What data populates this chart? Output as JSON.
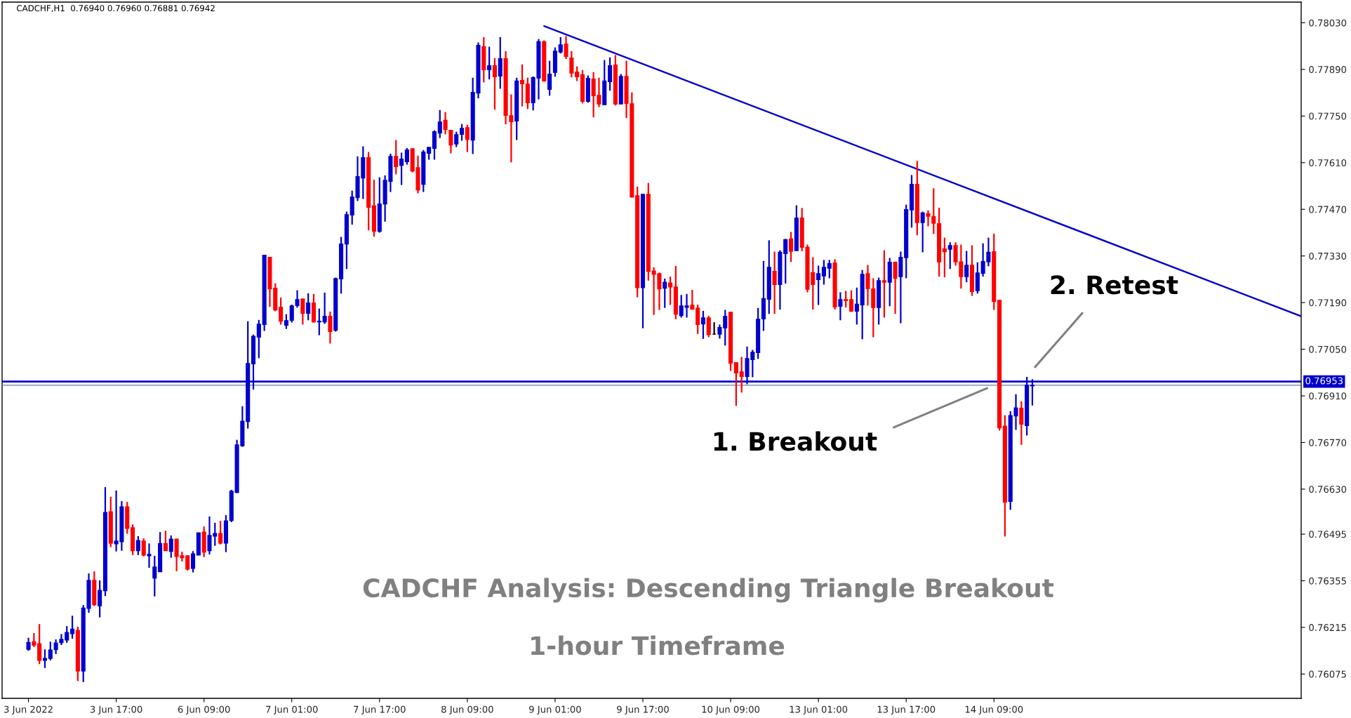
{
  "chart_data": {
    "type": "candlestick",
    "title": "CADCHF,H1  0.76940 0.76960 0.76881 0.76942",
    "categories": [
      "3 Jun 2022",
      null,
      null,
      null,
      null,
      null,
      null,
      null,
      null,
      null,
      null,
      null,
      null,
      null,
      null,
      null,
      "3 Jun 17:00",
      null,
      null,
      null,
      null,
      null,
      null,
      null,
      null,
      null,
      null,
      null,
      null,
      null,
      null,
      null,
      "6 Jun 09:00",
      null,
      null,
      null,
      null,
      null,
      null,
      null,
      null,
      null,
      null,
      null,
      null,
      null,
      null,
      null,
      "7 Jun 01:00",
      null,
      null,
      null,
      null,
      null,
      null,
      null,
      null,
      null,
      null,
      null,
      null,
      null,
      null,
      null,
      "7 Jun 17:00",
      null,
      null,
      null,
      null,
      null,
      null,
      null,
      null,
      null,
      null,
      null,
      null,
      null,
      null,
      null,
      "8 Jun 09:00",
      null,
      null,
      null,
      null,
      null,
      null,
      null,
      null,
      null,
      null,
      null,
      null,
      null,
      null,
      null,
      "9 Jun 01:00",
      null,
      null,
      null,
      null,
      null,
      null,
      null,
      null,
      null,
      null,
      null,
      null,
      null,
      null,
      null,
      "9 Jun 17:00",
      null,
      null,
      null,
      null,
      null,
      null,
      null,
      null,
      null,
      null,
      null,
      null,
      null,
      null,
      null,
      "10 Jun 09:00",
      null,
      null,
      null,
      null,
      null,
      null,
      null,
      null,
      null,
      null,
      null,
      null,
      null,
      null,
      null,
      "13 Jun 01:00",
      null,
      null,
      null,
      null,
      null,
      null,
      null,
      null,
      null,
      null,
      null,
      null,
      null,
      null,
      null,
      "13 Jun 17:00",
      null,
      null,
      null,
      null,
      null,
      null,
      null,
      null,
      null,
      null,
      null,
      null,
      null,
      null,
      null,
      "14 Jun 09:00",
      null,
      null,
      null,
      null,
      null,
      null,
      null,
      null,
      null,
      null,
      null,
      null,
      null,
      null,
      null,
      null,
      null,
      null,
      null,
      null,
      null,
      null,
      null,
      null,
      null,
      null,
      null,
      null,
      null,
      null,
      null,
      null,
      null,
      null,
      null,
      null,
      null,
      null,
      null,
      null,
      null,
      null,
      null,
      null,
      null,
      null,
      null,
      null,
      null,
      null,
      null,
      null,
      null,
      null,
      null,
      null
    ],
    "ohlc": [
      [
        0.76149,
        0.76184,
        0.76145,
        0.7617
      ],
      [
        0.76172,
        0.76198,
        0.76156,
        0.76162
      ],
      [
        0.76166,
        0.76225,
        0.76105,
        0.76116
      ],
      [
        0.76116,
        0.76149,
        0.76093,
        0.76122
      ],
      [
        0.76122,
        0.76172,
        0.76116,
        0.76147
      ],
      [
        0.76148,
        0.76179,
        0.76135,
        0.76168
      ],
      [
        0.76169,
        0.76195,
        0.76162,
        0.76179
      ],
      [
        0.76177,
        0.76219,
        0.76169,
        0.762
      ],
      [
        0.76196,
        0.7625,
        0.76181,
        0.7621
      ],
      [
        0.76206,
        0.76217,
        0.76054,
        0.76084
      ],
      [
        0.76084,
        0.76282,
        0.76051,
        0.76273
      ],
      [
        0.76272,
        0.76377,
        0.76259,
        0.76356
      ],
      [
        0.76356,
        0.76383,
        0.76279,
        0.76283
      ],
      [
        0.7628,
        0.76356,
        0.76245,
        0.76326
      ],
      [
        0.76325,
        0.76636,
        0.76309,
        0.7656
      ],
      [
        0.76562,
        0.76607,
        0.76456,
        0.76468
      ],
      [
        0.76466,
        0.76626,
        0.76443,
        0.76474
      ],
      [
        0.76472,
        0.76594,
        0.76445,
        0.76577
      ],
      [
        0.76577,
        0.76592,
        0.76496,
        0.76512
      ],
      [
        0.76514,
        0.76524,
        0.76432,
        0.76445
      ],
      [
        0.76445,
        0.76489,
        0.76432,
        0.76476
      ],
      [
        0.76474,
        0.76482,
        0.76428,
        0.76432
      ],
      [
        0.7643,
        0.76467,
        0.76394,
        0.76434
      ],
      [
        0.76363,
        0.7643,
        0.76308,
        0.76396
      ],
      [
        0.76382,
        0.76501,
        0.76382,
        0.76467
      ],
      [
        0.76467,
        0.76505,
        0.76445,
        0.76445
      ],
      [
        0.76443,
        0.76491,
        0.76424,
        0.7648
      ],
      [
        0.7648,
        0.76481,
        0.76384,
        0.76428
      ],
      [
        0.7643,
        0.76442,
        0.76413,
        0.76424
      ],
      [
        0.7643,
        0.76432,
        0.76386,
        0.7639
      ],
      [
        0.76392,
        0.76444,
        0.7638,
        0.76436
      ],
      [
        0.76432,
        0.76499,
        0.76432,
        0.76499
      ],
      [
        0.76501,
        0.76518,
        0.76426,
        0.76441
      ],
      [
        0.76445,
        0.76548,
        0.76434,
        0.76491
      ],
      [
        0.76489,
        0.76529,
        0.7646,
        0.76497
      ],
      [
        0.76497,
        0.76535,
        0.76464,
        0.76468
      ],
      [
        0.76468,
        0.76552,
        0.76441,
        0.76535
      ],
      [
        0.76536,
        0.76628,
        0.76531,
        0.76624
      ],
      [
        0.7662,
        0.76778,
        0.76618,
        0.76763
      ],
      [
        0.7676,
        0.76879,
        0.76757,
        0.76834
      ],
      [
        0.76833,
        0.77134,
        0.76812,
        0.77007
      ],
      [
        0.77006,
        0.77094,
        0.76929,
        0.77089
      ],
      [
        0.77086,
        0.77138,
        0.77023,
        0.77125
      ],
      [
        0.77124,
        0.77332,
        0.77105,
        0.77332
      ],
      [
        0.77326,
        0.77326,
        0.77177,
        0.77231
      ],
      [
        0.77233,
        0.77248,
        0.77164,
        0.77168
      ],
      [
        0.77176,
        0.77205,
        0.77124,
        0.77134
      ],
      [
        0.77122,
        0.77155,
        0.77111,
        0.77136
      ],
      [
        0.77137,
        0.77184,
        0.7713,
        0.7718
      ],
      [
        0.77181,
        0.77227,
        0.77175,
        0.77199
      ],
      [
        0.77201,
        0.77201,
        0.77124,
        0.77158
      ],
      [
        0.77158,
        0.77218,
        0.77137,
        0.77189
      ],
      [
        0.77189,
        0.77216,
        0.7713,
        0.77132
      ],
      [
        0.77132,
        0.77172,
        0.77092,
        0.77134
      ],
      [
        0.77132,
        0.7722,
        0.77126,
        0.77149
      ],
      [
        0.77149,
        0.77163,
        0.77067,
        0.77103
      ],
      [
        0.77107,
        0.77265,
        0.77103,
        0.77262
      ],
      [
        0.77261,
        0.77387,
        0.77217,
        0.77366
      ],
      [
        0.77366,
        0.77463,
        0.77291,
        0.77454
      ],
      [
        0.77453,
        0.77526,
        0.77424,
        0.77507
      ],
      [
        0.77505,
        0.77629,
        0.77495,
        0.77568
      ],
      [
        0.77564,
        0.77659,
        0.77501,
        0.77625
      ],
      [
        0.77625,
        0.77642,
        0.77407,
        0.77476
      ],
      [
        0.77481,
        0.77559,
        0.77388,
        0.77404
      ],
      [
        0.77404,
        0.77566,
        0.774,
        0.77486
      ],
      [
        0.77486,
        0.77572,
        0.77433,
        0.77557
      ],
      [
        0.77554,
        0.77637,
        0.77522,
        0.77629
      ],
      [
        0.77629,
        0.77678,
        0.77575,
        0.77598
      ],
      [
        0.77602,
        0.7764,
        0.77543,
        0.77621
      ],
      [
        0.77613,
        0.77654,
        0.77604,
        0.77648
      ],
      [
        0.77652,
        0.77652,
        0.77581,
        0.77585
      ],
      [
        0.77595,
        0.77631,
        0.77518,
        0.77528
      ],
      [
        0.77545,
        0.77648,
        0.77522,
        0.77642
      ],
      [
        0.77638,
        0.77656,
        0.77619,
        0.77656
      ],
      [
        0.77653,
        0.77707,
        0.77619,
        0.77703
      ],
      [
        0.77699,
        0.77768,
        0.77684,
        0.77732
      ],
      [
        0.77737,
        0.77762,
        0.77695,
        0.7771
      ],
      [
        0.77707,
        0.77707,
        0.77638,
        0.77663
      ],
      [
        0.77666,
        0.77703,
        0.77657,
        0.77694
      ],
      [
        0.77695,
        0.77726,
        0.77676,
        0.77713
      ],
      [
        0.77715,
        0.77724,
        0.77642,
        0.7768
      ],
      [
        0.77678,
        0.77865,
        0.77636,
        0.77821
      ],
      [
        0.77819,
        0.77971,
        0.77803,
        0.77962
      ],
      [
        0.77958,
        0.77987,
        0.77851,
        0.77889
      ],
      [
        0.77889,
        0.77958,
        0.7786,
        0.77901
      ],
      [
        0.77901,
        0.77924,
        0.77769,
        0.77868
      ],
      [
        0.7787,
        0.77987,
        0.77832,
        0.77922
      ],
      [
        0.77922,
        0.77945,
        0.77725,
        0.77752
      ],
      [
        0.77751,
        0.77815,
        0.77611,
        0.77733
      ],
      [
        0.77735,
        0.77865,
        0.77678,
        0.77855
      ],
      [
        0.77857,
        0.77905,
        0.77779,
        0.77847
      ],
      [
        0.77846,
        0.77865,
        0.77771,
        0.7779
      ],
      [
        0.7779,
        0.77869,
        0.77767,
        0.77865
      ],
      [
        0.77864,
        0.77981,
        0.778,
        0.77973
      ],
      [
        0.77973,
        0.77977,
        0.77853,
        0.77855
      ],
      [
        0.7783,
        0.77916,
        0.77811,
        0.77876
      ],
      [
        0.77881,
        0.77956,
        0.77868,
        0.77945
      ],
      [
        0.77942,
        0.77987,
        0.77938,
        0.77964
      ],
      [
        0.77966,
        0.7799,
        0.77921,
        0.77929
      ],
      [
        0.77924,
        0.77945,
        0.77866,
        0.77879
      ],
      [
        0.77882,
        0.77899,
        0.77855,
        0.77868
      ],
      [
        0.77874,
        0.77888,
        0.77788,
        0.77794
      ],
      [
        0.77794,
        0.77872,
        0.7779,
        0.77863
      ],
      [
        0.77861,
        0.77882,
        0.77746,
        0.77811
      ],
      [
        0.77812,
        0.77865,
        0.77777,
        0.77786
      ],
      [
        0.77784,
        0.77918,
        0.77784,
        0.77855
      ],
      [
        0.77853,
        0.77926,
        0.77826,
        0.77901
      ],
      [
        0.77903,
        0.77933,
        0.77782,
        0.77786
      ],
      [
        0.77786,
        0.77876,
        0.77786,
        0.77869
      ],
      [
        0.77869,
        0.77916,
        0.77744,
        0.77788
      ],
      [
        0.77787,
        0.77821,
        0.77505,
        0.77507
      ],
      [
        0.77511,
        0.77538,
        0.77206,
        0.77235
      ],
      [
        0.77235,
        0.77515,
        0.77113,
        0.77515
      ],
      [
        0.77515,
        0.77549,
        0.77256,
        0.77284
      ],
      [
        0.77285,
        0.77296,
        0.77153,
        0.77275
      ],
      [
        0.77277,
        0.7728,
        0.77168,
        0.77231
      ],
      [
        0.77233,
        0.77262,
        0.77174,
        0.77251
      ],
      [
        0.77249,
        0.77268,
        0.77183,
        0.77237
      ],
      [
        0.77237,
        0.773,
        0.7714,
        0.77155
      ],
      [
        0.77151,
        0.77213,
        0.77145,
        0.7718
      ],
      [
        0.77176,
        0.77216,
        0.77145,
        0.7718
      ],
      [
        0.77182,
        0.77228,
        0.7717,
        0.7717
      ],
      [
        0.77173,
        0.77184,
        0.77096,
        0.77124
      ],
      [
        0.77126,
        0.77165,
        0.77081,
        0.77144
      ],
      [
        0.77144,
        0.7715,
        0.77086,
        0.77094
      ],
      [
        0.77095,
        0.77131,
        0.77094,
        0.77095
      ],
      [
        0.77095,
        0.77124,
        0.77082,
        0.77115
      ],
      [
        0.77114,
        0.77168,
        0.77061,
        0.77149
      ],
      [
        0.77161,
        0.77161,
        0.76985,
        0.77008
      ],
      [
        0.7701,
        0.7701,
        0.7688,
        0.76979
      ],
      [
        0.76982,
        0.77027,
        0.7692,
        0.76968
      ],
      [
        0.76968,
        0.77058,
        0.76945,
        0.77022
      ],
      [
        0.77019,
        0.77048,
        0.76966,
        0.77041
      ],
      [
        0.7704,
        0.77174,
        0.77021,
        0.7714
      ],
      [
        0.77141,
        0.77315,
        0.77105,
        0.77202
      ],
      [
        0.772,
        0.77377,
        0.77156,
        0.77296
      ],
      [
        0.77284,
        0.77343,
        0.77156,
        0.77244
      ],
      [
        0.77244,
        0.77347,
        0.77169,
        0.77341
      ],
      [
        0.77337,
        0.77381,
        0.77247,
        0.77379
      ],
      [
        0.77381,
        0.77402,
        0.77312,
        0.77344
      ],
      [
        0.77346,
        0.77482,
        0.77346,
        0.77444
      ],
      [
        0.77444,
        0.77474,
        0.77344,
        0.77356
      ],
      [
        0.77356,
        0.77364,
        0.77221,
        0.7723
      ],
      [
        0.7728,
        0.77326,
        0.77169,
        0.77244
      ],
      [
        0.77259,
        0.77301,
        0.77183,
        0.77277
      ],
      [
        0.7727,
        0.77318,
        0.77244,
        0.77296
      ],
      [
        0.77293,
        0.77318,
        0.77263,
        0.77307
      ],
      [
        0.77309,
        0.7732,
        0.77169,
        0.77177
      ],
      [
        0.77179,
        0.77221,
        0.77137,
        0.77199
      ],
      [
        0.77199,
        0.77225,
        0.77175,
        0.77196
      ],
      [
        0.77199,
        0.77227,
        0.77162,
        0.77164
      ],
      [
        0.77164,
        0.77235,
        0.77124,
        0.77185
      ],
      [
        0.77183,
        0.77288,
        0.7708,
        0.77275
      ],
      [
        0.77277,
        0.77303,
        0.77181,
        0.77232
      ],
      [
        0.77231,
        0.77263,
        0.77086,
        0.77175
      ],
      [
        0.77175,
        0.77265,
        0.77124,
        0.77256
      ],
      [
        0.77256,
        0.77347,
        0.77145,
        0.77251
      ],
      [
        0.77251,
        0.77324,
        0.77179,
        0.77311
      ],
      [
        0.77311,
        0.77313,
        0.77156,
        0.77263
      ],
      [
        0.77268,
        0.77343,
        0.77128,
        0.77326
      ],
      [
        0.77325,
        0.77484,
        0.77263,
        0.77469
      ],
      [
        0.77468,
        0.77573,
        0.77415,
        0.77545
      ],
      [
        0.77545,
        0.77615,
        0.77392,
        0.7743
      ],
      [
        0.7743,
        0.77463,
        0.77341,
        0.77459
      ],
      [
        0.77457,
        0.77467,
        0.77419,
        0.77449
      ],
      [
        0.77448,
        0.77533,
        0.77396,
        0.77428
      ],
      [
        0.77427,
        0.77475,
        0.77268,
        0.77312
      ],
      [
        0.77351,
        0.77385,
        0.77266,
        0.77343
      ],
      [
        0.7735,
        0.77371,
        0.77291,
        0.77361
      ],
      [
        0.77361,
        0.77371,
        0.77301,
        0.77312
      ],
      [
        0.77312,
        0.77364,
        0.77232,
        0.77268
      ],
      [
        0.77268,
        0.77345,
        0.77251,
        0.77302
      ],
      [
        0.77302,
        0.77362,
        0.7721,
        0.77223
      ],
      [
        0.77226,
        0.77311,
        0.77217,
        0.77279
      ],
      [
        0.77278,
        0.77368,
        0.77268,
        0.77313
      ],
      [
        0.77312,
        0.77385,
        0.77299,
        0.77341
      ],
      [
        0.77343,
        0.77397,
        0.77168,
        0.77193
      ],
      [
        0.77197,
        0.77197,
        0.76806,
        0.76814
      ],
      [
        0.76819,
        0.76852,
        0.76488,
        0.76591
      ],
      [
        0.76593,
        0.76864,
        0.76568,
        0.76851
      ],
      [
        0.7685,
        0.76915,
        0.76808,
        0.76874
      ],
      [
        0.76873,
        0.76894,
        0.76763,
        0.76825
      ],
      [
        0.76821,
        0.76967,
        0.76791,
        0.76942
      ],
      [
        0.7694,
        0.7696,
        0.76881,
        0.76942
      ],
      null,
      null,
      null,
      null,
      null,
      null,
      null,
      null,
      null,
      null,
      null,
      null,
      null,
      null,
      null,
      null,
      null,
      null,
      null,
      null,
      null,
      null,
      null,
      null,
      null,
      null,
      null,
      null,
      null,
      null,
      null,
      null,
      null,
      null,
      null,
      null,
      null,
      null,
      null,
      null,
      null,
      null,
      null,
      null,
      null,
      null,
      null,
      null,
      null
    ],
    "colors": [
      "#0000cc",
      "#ff0000",
      "#ff0000",
      "#0000cc",
      "#0000cc",
      "#0000cc",
      "#0000cc",
      "#0000cc",
      "#0000cc",
      "#ff0000",
      "#0000cc",
      "#0000cc",
      "#ff0000",
      "#0000cc",
      "#0000cc",
      "#ff0000",
      "#0000cc",
      "#0000cc",
      "#ff0000",
      "#ff0000",
      "#0000cc",
      "#ff0000",
      "#0000cc",
      "#0000cc",
      "#0000cc",
      "#ff0000",
      "#0000cc",
      "#ff0000",
      "#ff0000",
      "#ff0000",
      "#0000cc",
      "#0000cc",
      "#ff0000",
      "#0000cc",
      "#0000cc",
      "#ff0000",
      "#0000cc",
      "#0000cc",
      "#0000cc",
      "#0000cc",
      "#0000cc",
      "#0000cc",
      "#0000cc",
      "#0000cc",
      "#ff0000",
      "#ff0000",
      "#ff0000",
      "#0000cc",
      "#0000cc",
      "#0000cc",
      "#ff0000",
      "#0000cc",
      "#ff0000",
      "#0000cc",
      "#0000cc",
      "#ff0000",
      "#0000cc",
      "#0000cc",
      "#0000cc",
      "#0000cc",
      "#0000cc",
      "#0000cc",
      "#ff0000",
      "#ff0000",
      "#0000cc",
      "#0000cc",
      "#0000cc",
      "#ff0000",
      "#0000cc",
      "#0000cc",
      "#ff0000",
      "#ff0000",
      "#0000cc",
      "#0000cc",
      "#0000cc",
      "#0000cc",
      "#ff0000",
      "#ff0000",
      "#0000cc",
      "#0000cc",
      "#ff0000",
      "#0000cc",
      "#0000cc",
      "#ff0000",
      "#0000cc",
      "#ff0000",
      "#0000cc",
      "#ff0000",
      "#ff0000",
      "#0000cc",
      "#ff0000",
      "#ff0000",
      "#0000cc",
      "#0000cc",
      "#ff0000",
      "#0000cc",
      "#0000cc",
      "#0000cc",
      "#ff0000",
      "#ff0000",
      "#ff0000",
      "#ff0000",
      "#0000cc",
      "#ff0000",
      "#ff0000",
      "#0000cc",
      "#0000cc",
      "#ff0000",
      "#0000cc",
      "#ff0000",
      "#ff0000",
      "#ff0000",
      "#0000cc",
      "#ff0000",
      "#ff0000",
      "#ff0000",
      "#0000cc",
      "#ff0000",
      "#ff0000",
      "#0000cc",
      "#0000cc",
      "#ff0000",
      "#ff0000",
      "#0000cc",
      "#ff0000",
      "#000000",
      "#0000cc",
      "#0000cc",
      "#ff0000",
      "#ff0000",
      "#ff0000",
      "#0000cc",
      "#0000cc",
      "#0000cc",
      "#0000cc",
      "#0000cc",
      "#ff0000",
      "#0000cc",
      "#0000cc",
      "#ff0000",
      "#0000cc",
      "#ff0000",
      "#ff0000",
      "#ff0000",
      "#0000cc",
      "#0000cc",
      "#0000cc",
      "#ff0000",
      "#0000cc",
      "#ff0000",
      "#ff0000",
      "#0000cc",
      "#0000cc",
      "#ff0000",
      "#ff0000",
      "#0000cc",
      "#ff0000",
      "#0000cc",
      "#ff0000",
      "#0000cc",
      "#0000cc",
      "#0000cc",
      "#ff0000",
      "#0000cc",
      "#ff0000",
      "#ff0000",
      "#ff0000",
      "#ff0000",
      "#0000cc",
      "#ff0000",
      "#ff0000",
      "#0000cc",
      "#ff0000",
      "#0000cc",
      "#0000cc",
      "#0000cc",
      "#ff0000",
      "#ff0000",
      "#ff0000",
      "#0000cc",
      "#0000cc",
      "#ff0000",
      "#0000cc",
      "#0000cc",
      null,
      null,
      null,
      null,
      null,
      null,
      null,
      null,
      null,
      null,
      null,
      null,
      null,
      null,
      null,
      null,
      null,
      null,
      null,
      null,
      null,
      null,
      null,
      null,
      null,
      null,
      null,
      null,
      null,
      null,
      null,
      null,
      null,
      null,
      null,
      null,
      null,
      null,
      null,
      null,
      null,
      null,
      null,
      null,
      null,
      null,
      null,
      null,
      null
    ],
    "series": [
      {
        "type": "line",
        "color": "#0000cc",
        "values": [
          null,
          null,
          null,
          null,
          null,
          null,
          null,
          null,
          null,
          null,
          null,
          null,
          null,
          null,
          null,
          null,
          null,
          null,
          null,
          null,
          null,
          null,
          null,
          null,
          null,
          null,
          null,
          null,
          null,
          null,
          null,
          null,
          null,
          null,
          null,
          null,
          null,
          null,
          null,
          null,
          null,
          null,
          null,
          null,
          null,
          null,
          null,
          null,
          null,
          null,
          null,
          null,
          null,
          null,
          null,
          null,
          null,
          null,
          null,
          null,
          null,
          null,
          null,
          null,
          null,
          null,
          null,
          null,
          null,
          null,
          null,
          null,
          null,
          null,
          null,
          null,
          null,
          null,
          null,
          null,
          null,
          null,
          null,
          null,
          null,
          null,
          null,
          null,
          null,
          null,
          null,
          null,
          null,
          null,
          0.7802,
          null,
          null,
          null,
          null,
          null,
          null,
          null,
          null,
          null,
          null,
          null,
          null,
          null,
          null,
          null,
          null,
          null,
          null,
          null,
          null,
          null,
          null,
          null,
          null,
          null,
          null,
          null,
          null,
          null,
          null,
          null,
          null,
          null,
          null,
          null,
          null,
          null,
          null,
          null,
          null,
          null,
          null,
          null,
          null,
          null,
          null,
          null,
          null,
          null,
          null,
          null,
          null,
          null,
          null,
          null,
          null,
          null,
          null,
          null,
          null,
          null,
          null,
          null,
          null,
          null,
          null,
          null,
          null,
          null,
          null,
          null,
          null,
          null,
          null,
          null,
          null,
          null,
          null,
          null,
          null,
          null,
          null,
          null,
          null,
          null,
          null,
          null,
          null,
          null,
          null,
          null,
          null,
          null,
          null,
          null,
          null,
          null,
          null,
          null,
          null,
          null,
          null,
          null,
          null,
          null,
          null,
          null,
          null,
          null,
          null,
          null,
          null,
          null,
          null,
          null,
          null,
          null,
          null,
          null,
          null,
          null,
          null,
          null,
          null,
          null,
          null,
          null,
          null,
          null,
          null,
          null,
          null,
          null,
          null,
          null,
          null,
          null,
          0.77149
        ]
      }
    ],
    "ylim": [
      0.76002,
      0.78092
    ],
    "yticks": [
      {
        "value": 0.7803,
        "label": "0.78030"
      },
      {
        "value": 0.7789,
        "label": "0.77890"
      },
      {
        "value": 0.7775,
        "label": "0.77750"
      },
      {
        "value": 0.7761,
        "label": "0.77610"
      },
      {
        "value": 0.7747,
        "label": "0.77470"
      },
      {
        "value": 0.7733,
        "label": "0.77330"
      },
      {
        "value": 0.7719,
        "label": "0.77190"
      },
      {
        "value": 0.7705,
        "label": "0.77050"
      },
      {
        "value": 0.7691,
        "label": "0.76910"
      },
      {
        "value": 0.7677,
        "label": "0.76770"
      },
      {
        "value": 0.7663,
        "label": "0.76630"
      },
      {
        "value": 0.76495,
        "label": "0.76495"
      },
      {
        "value": 0.76355,
        "label": "0.76355"
      },
      {
        "value": 0.76215,
        "label": "0.76215"
      },
      {
        "value": 0.76075,
        "label": "0.76075"
      }
    ],
    "ref_lines": [
      {
        "axis": "y",
        "value": 0.76953,
        "label": "0.76953",
        "color": "#0000cc"
      },
      {
        "axis": "y",
        "value": 0.76942,
        "label": null,
        "color": "#708090"
      }
    ],
    "annotations": [
      "CADCHF Analysis: Descending Triangle Breakout",
      "1-hour Timeframe",
      "1. Breakout",
      "2. Retest"
    ]
  }
}
